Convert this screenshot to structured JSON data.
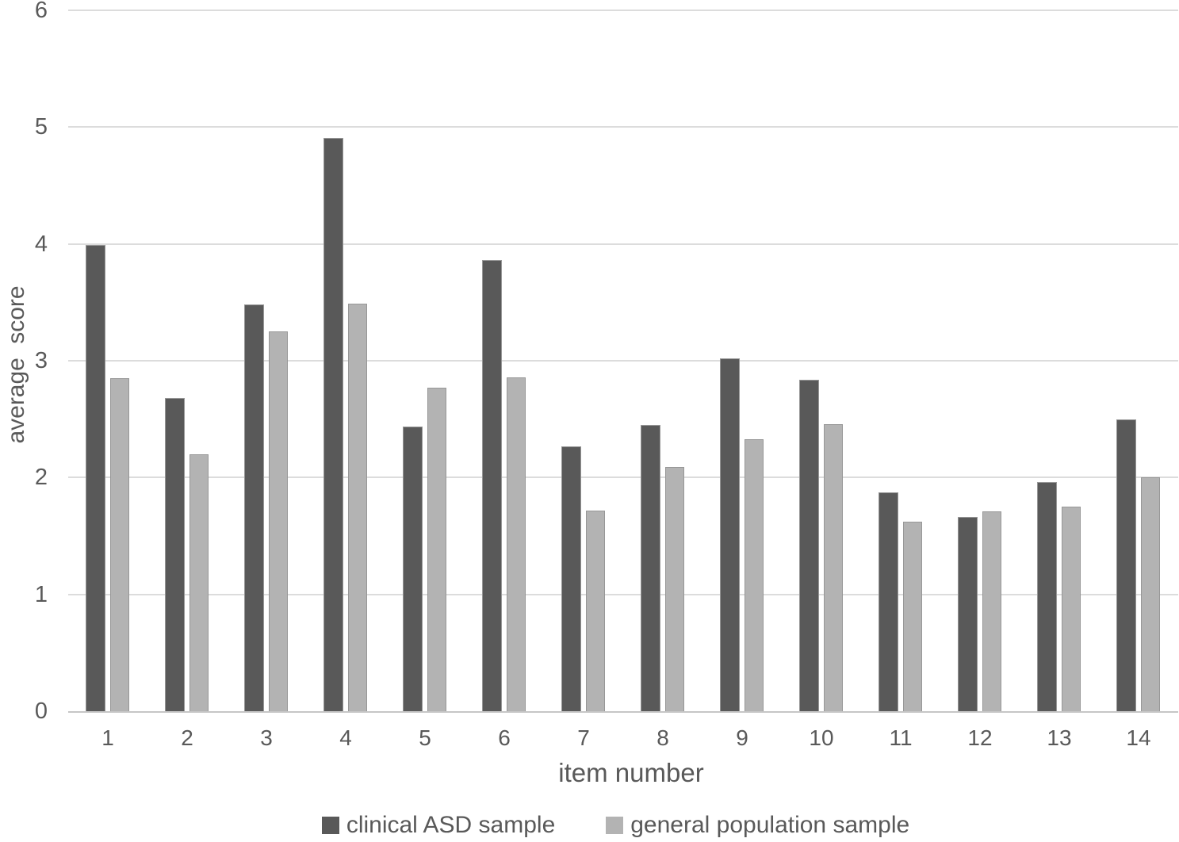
{
  "chart_data": {
    "type": "bar",
    "xlabel": "item number",
    "ylabel": "average score",
    "categories": [
      "1",
      "2",
      "3",
      "4",
      "5",
      "6",
      "7",
      "8",
      "9",
      "10",
      "11",
      "12",
      "13",
      "14"
    ],
    "series": [
      {
        "name": "clinical ASD sample",
        "color": "#595959",
        "values": [
          3.99,
          2.68,
          3.48,
          4.91,
          2.44,
          3.86,
          2.27,
          2.45,
          3.02,
          2.84,
          1.87,
          1.66,
          1.96,
          2.5
        ]
      },
      {
        "name": "general population sample",
        "color": "#b3b3b3",
        "values": [
          2.85,
          2.2,
          3.25,
          3.49,
          2.77,
          2.86,
          1.72,
          2.09,
          2.33,
          2.46,
          1.62,
          1.71,
          1.75,
          2.0
        ]
      }
    ],
    "ylim": [
      0,
      6
    ],
    "yticks": [
      0,
      1,
      2,
      3,
      4,
      5,
      6
    ],
    "grid": true,
    "legend_position": "bottom"
  },
  "colors": {
    "background": "#ffffff",
    "gridline": "#dcdcdc",
    "axis_line": "#c6c6c6",
    "text": "#595959",
    "bar_border": "#979797"
  }
}
